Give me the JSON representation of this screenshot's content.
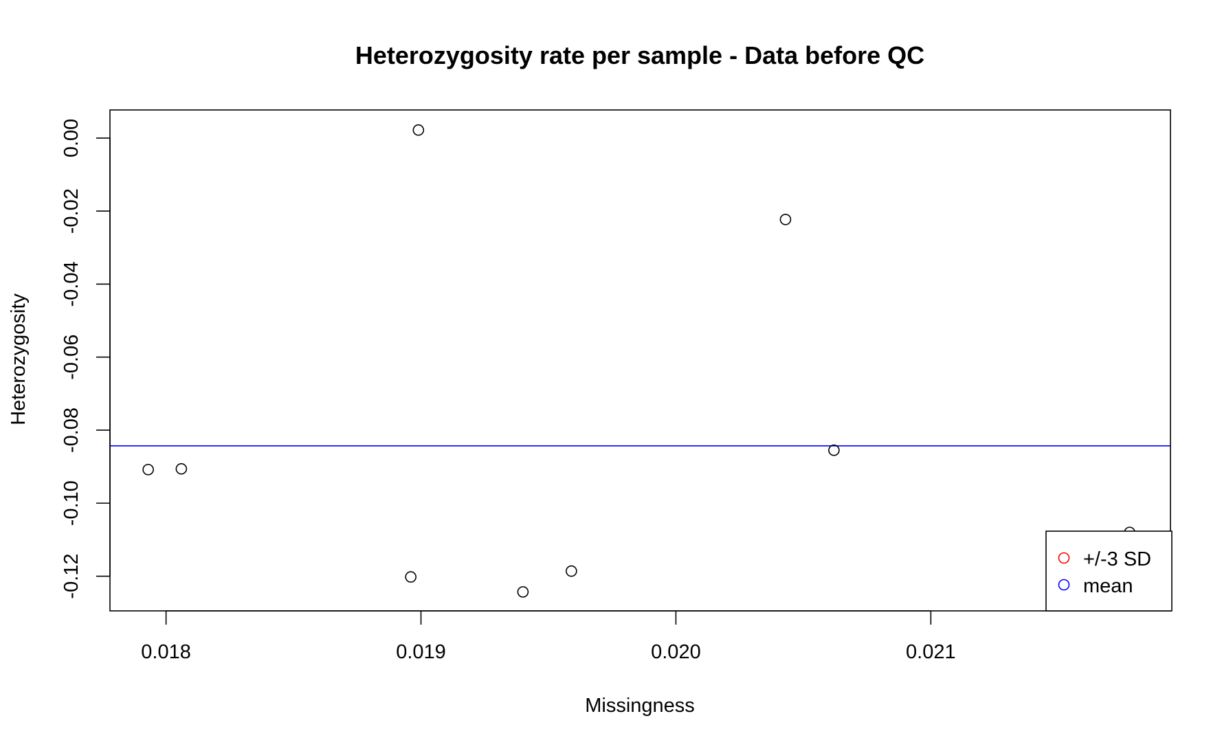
{
  "chart_data": {
    "type": "scatter",
    "title": "Heterozygosity rate per sample - Data before QC",
    "xlabel": "Missingness",
    "ylabel": "Heterozygosity",
    "xlim": [
      0.01778,
      0.02194
    ],
    "ylim": [
      -0.1295,
      0.0077
    ],
    "x_ticks": [
      0.018,
      0.019,
      0.02,
      0.021
    ],
    "x_tick_labels": [
      "0.018",
      "0.019",
      "0.020",
      "0.021"
    ],
    "y_ticks": [
      0.0,
      -0.02,
      -0.04,
      -0.06,
      -0.08,
      -0.1,
      -0.12
    ],
    "y_tick_labels": [
      "0.00",
      "-0.02",
      "-0.04",
      "-0.06",
      "-0.08",
      "-0.10",
      "-0.12"
    ],
    "points": [
      {
        "x": 0.01793,
        "y": -0.0908
      },
      {
        "x": 0.01806,
        "y": -0.0906
      },
      {
        "x": 0.01899,
        "y": 0.0022
      },
      {
        "x": 0.01896,
        "y": -0.1202
      },
      {
        "x": 0.0194,
        "y": -0.1243
      },
      {
        "x": 0.01959,
        "y": -0.1186
      },
      {
        "x": 0.02043,
        "y": -0.0223
      },
      {
        "x": 0.02062,
        "y": -0.0855
      },
      {
        "x": 0.02178,
        "y": -0.108
      }
    ],
    "mean_line": -0.0843,
    "grid": false,
    "legend": {
      "placement": "bottom-right",
      "entries": [
        {
          "label": "+/-3 SD",
          "color": "#ff0000"
        },
        {
          "label": "mean",
          "color": "#0000ff"
        }
      ]
    },
    "colors": {
      "points": "#000000",
      "mean_line": "#0000ff"
    }
  }
}
